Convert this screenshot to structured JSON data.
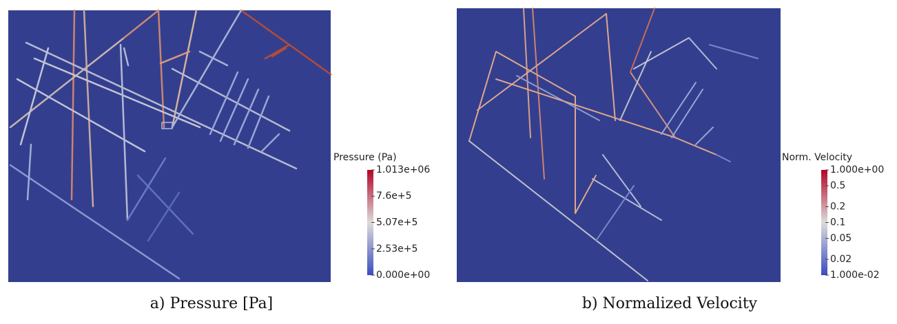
{
  "panels": [
    {
      "caption": "a) Pressure [Pa]",
      "colorbar": {
        "title": "Pressure (Pa)",
        "scale": "linear",
        "range": [
          0,
          1013000
        ],
        "colors": [
          "#3b4cc0",
          "#dcdcdc",
          "#b40426"
        ],
        "ticks": [
          {
            "value": 1013000,
            "label": "1.013e+06"
          },
          {
            "value": 760000,
            "label": "7.6e+5"
          },
          {
            "value": 507000,
            "label": "5.07e+5"
          },
          {
            "value": 253000,
            "label": "2.53e+5"
          },
          {
            "value": 0,
            "label": "0.000e+00"
          }
        ]
      }
    },
    {
      "caption": "b) Normalized Velocity",
      "colorbar": {
        "title": "Norm. Velocity",
        "scale": "log",
        "range": [
          0.01,
          1
        ],
        "colors": [
          "#3b4cc0",
          "#dcdcdc",
          "#b40426"
        ],
        "ticks": [
          {
            "value": 1,
            "label": "1.000e+00"
          },
          0.5,
          0.2,
          0.1,
          0.05,
          0.02,
          {
            "value": 0.01,
            "label": "1.000e-02"
          }
        ]
      }
    }
  ]
}
